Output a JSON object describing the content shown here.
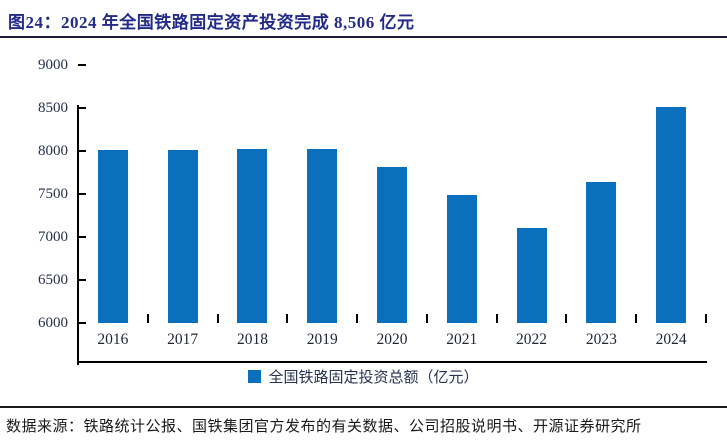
{
  "header": {
    "title": "图24：2024 年全国铁路固定资产投资完成 8,506 亿元"
  },
  "chart_data": {
    "type": "bar",
    "title": "2024 年全国铁路固定资产投资完成 8,506 亿元",
    "categories": [
      "2016",
      "2017",
      "2018",
      "2019",
      "2020",
      "2021",
      "2022",
      "2023",
      "2024"
    ],
    "values": [
      8015,
      8010,
      8028,
      8029,
      7819,
      7489,
      7109,
      7645,
      8506
    ],
    "series_name": "全国铁路固定投资总额（亿元）",
    "xlabel": "",
    "ylabel": "",
    "ylim": [
      6000,
      9000
    ],
    "y_ticks": [
      6000,
      6500,
      7000,
      7500,
      8000,
      8500,
      9000
    ],
    "grid": false,
    "legend_position": "bottom",
    "bar_color": "#0A70BD"
  },
  "legend": {
    "label": "全国铁路固定投资总额（亿元）",
    "marker_color": "#0A70BD"
  },
  "footer": {
    "source": "数据来源：铁路统计公报、国铁集团官方发布的有关数据、公司招股说明书、开源证券研究所"
  },
  "colors": {
    "title": "#232B8A",
    "bar": "#0A70BD",
    "axis": "#000000",
    "title_rule": "#1C1C3A",
    "footer_rule": "#1A1A1A"
  }
}
